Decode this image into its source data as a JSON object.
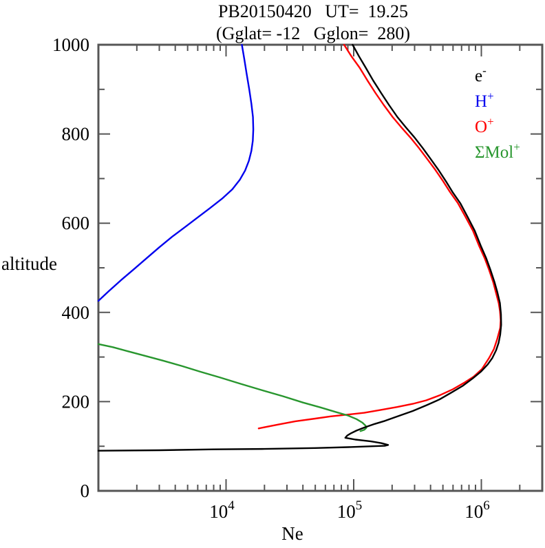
{
  "title": "PB20150420   UT=  19.25",
  "subtitle": "(Gglat= -12   Gglon=  280)",
  "colors": {
    "background": "#ffffff",
    "frame": "#555555",
    "electron": "#000000",
    "h_plus": "#0000ee",
    "o_plus": "#ff0000",
    "mol_plus": "#28962e"
  },
  "chart_data": {
    "type": "line",
    "title": "PB20150420   UT=  19.25",
    "subtitle": "(Gglat= -12   Gglon=  280)",
    "xlabel": "Ne",
    "ylabel": "altitude",
    "x_axis": {
      "scale": "log",
      "min": 1000,
      "max": 3000000,
      "major_ticks": [
        10000,
        100000,
        1000000
      ],
      "tick_label_style": "power-of-ten",
      "minor_ticks": "2-9 per decade"
    },
    "y_axis": {
      "scale": "linear",
      "min": 0,
      "max": 1000,
      "major_ticks": [
        0,
        200,
        400,
        600,
        800,
        1000
      ],
      "tick_labels": [
        "0",
        "200",
        "400",
        "600",
        "800",
        "1000"
      ],
      "minor_ticks": [
        100,
        300,
        500,
        700,
        900
      ]
    },
    "grid": false,
    "legend_position": "top-right-inside",
    "series": [
      {
        "id": "electron",
        "name": "e-",
        "label_base": "e",
        "label_sup": "-",
        "color": "#000000",
        "z": 4,
        "points": [
          [
            1000,
            90
          ],
          [
            3000,
            91
          ],
          [
            8000,
            93
          ],
          [
            20000,
            94
          ],
          [
            50000,
            96
          ],
          [
            90000,
            98
          ],
          [
            140000,
            100
          ],
          [
            175000,
            101
          ],
          [
            186000,
            103
          ],
          [
            165000,
            107
          ],
          [
            136000,
            111
          ],
          [
            103000,
            115
          ],
          [
            86000,
            119
          ],
          [
            89000,
            124
          ],
          [
            95000,
            129
          ],
          [
            105000,
            135
          ],
          [
            121000,
            142
          ],
          [
            146000,
            150
          ],
          [
            176000,
            157
          ],
          [
            216000,
            166
          ],
          [
            290000,
            179
          ],
          [
            372000,
            192
          ],
          [
            470000,
            205
          ],
          [
            580000,
            220
          ],
          [
            720000,
            236
          ],
          [
            855000,
            252
          ],
          [
            990000,
            267
          ],
          [
            1120000,
            283
          ],
          [
            1220000,
            298
          ],
          [
            1305000,
            315
          ],
          [
            1365000,
            332
          ],
          [
            1405000,
            350
          ],
          [
            1430000,
            372
          ],
          [
            1425000,
            396
          ],
          [
            1398000,
            421
          ],
          [
            1335000,
            445
          ],
          [
            1268000,
            468
          ],
          [
            1180000,
            495
          ],
          [
            1090000,
            522
          ],
          [
            988000,
            550
          ],
          [
            888000,
            583
          ],
          [
            780000,
            614
          ],
          [
            683000,
            645
          ],
          [
            594000,
            670
          ],
          [
            528000,
            694
          ],
          [
            460000,
            720
          ],
          [
            398000,
            745
          ],
          [
            348000,
            768
          ],
          [
            300000,
            792
          ],
          [
            256000,
            815
          ],
          [
            220000,
            838
          ],
          [
            189000,
            865
          ],
          [
            164000,
            892
          ],
          [
            142000,
            920
          ],
          [
            124000,
            949
          ],
          [
            110000,
            974
          ],
          [
            98000,
            1000
          ]
        ]
      },
      {
        "id": "h-plus",
        "name": "H+",
        "label_base": "H",
        "label_sup": "+",
        "color": "#0000ee",
        "z": 3,
        "points": [
          [
            1000,
            426
          ],
          [
            1200,
            447
          ],
          [
            1500,
            472
          ],
          [
            1900,
            497
          ],
          [
            2400,
            522
          ],
          [
            3000,
            546
          ],
          [
            3800,
            570
          ],
          [
            4800,
            592
          ],
          [
            6000,
            613
          ],
          [
            7500,
            634
          ],
          [
            9300,
            655
          ],
          [
            11200,
            676
          ],
          [
            12800,
            697
          ],
          [
            14100,
            718
          ],
          [
            15100,
            740
          ],
          [
            15800,
            762
          ],
          [
            16200,
            785
          ],
          [
            16350,
            810
          ],
          [
            16250,
            838
          ],
          [
            15800,
            868
          ],
          [
            15200,
            900
          ],
          [
            14500,
            935
          ],
          [
            13900,
            968
          ],
          [
            13300,
            1000
          ]
        ]
      },
      {
        "id": "o-plus",
        "name": "O+",
        "label_base": "O",
        "label_sup": "+",
        "color": "#ff0000",
        "z": 1,
        "points": [
          [
            18000,
            140
          ],
          [
            26000,
            149
          ],
          [
            35000,
            156
          ],
          [
            50000,
            162
          ],
          [
            66000,
            167
          ],
          [
            90000,
            171
          ],
          [
            121000,
            175
          ],
          [
            160000,
            181
          ],
          [
            219000,
            188
          ],
          [
            290000,
            195
          ],
          [
            370000,
            203
          ],
          [
            470000,
            214
          ],
          [
            600000,
            228
          ],
          [
            730000,
            242
          ],
          [
            870000,
            256
          ],
          [
            1010000,
            273
          ],
          [
            1150000,
            298
          ],
          [
            1255000,
            318
          ],
          [
            1330000,
            340
          ],
          [
            1405000,
            365
          ],
          [
            1418000,
            382
          ],
          [
            1400000,
            403
          ],
          [
            1368000,
            421
          ],
          [
            1300000,
            445
          ],
          [
            1238000,
            468
          ],
          [
            1150000,
            495
          ],
          [
            1060000,
            522
          ],
          [
            958000,
            550
          ],
          [
            860000,
            583
          ],
          [
            752000,
            614
          ],
          [
            655000,
            645
          ],
          [
            568000,
            670
          ],
          [
            502000,
            694
          ],
          [
            435000,
            720
          ],
          [
            374000,
            745
          ],
          [
            325000,
            768
          ],
          [
            278000,
            792
          ],
          [
            236000,
            815
          ],
          [
            202000,
            838
          ],
          [
            172000,
            865
          ],
          [
            148000,
            892
          ],
          [
            128000,
            920
          ],
          [
            111000,
            949
          ],
          [
            96000,
            974
          ],
          [
            84000,
            1000
          ]
        ]
      },
      {
        "id": "mol-plus",
        "name": "ΣMol+",
        "label_base": "ΣMol",
        "label_sup": "+",
        "color": "#28962e",
        "z": 2,
        "points": [
          [
            1000,
            329
          ],
          [
            1300,
            322
          ],
          [
            1700,
            313
          ],
          [
            2300,
            303
          ],
          [
            3200,
            292
          ],
          [
            4500,
            280
          ],
          [
            6300,
            267
          ],
          [
            9000,
            254
          ],
          [
            13000,
            240
          ],
          [
            19000,
            226
          ],
          [
            28000,
            212
          ],
          [
            40000,
            198
          ],
          [
            55000,
            187
          ],
          [
            72000,
            177
          ],
          [
            90000,
            169
          ],
          [
            105000,
            161
          ],
          [
            117000,
            153
          ],
          [
            124000,
            146
          ],
          [
            125500,
            141
          ],
          [
            121000,
            137
          ],
          [
            113000,
            134
          ]
        ]
      }
    ]
  }
}
